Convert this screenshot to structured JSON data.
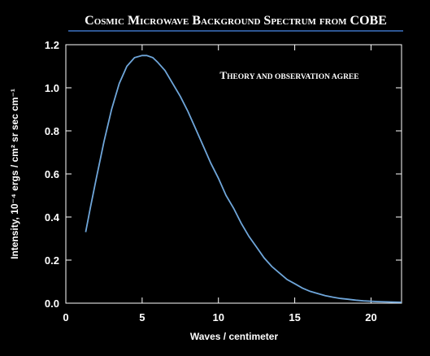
{
  "title": "Cosmic Microwave Background Spectrum from COBE",
  "colors": {
    "background": "#000000",
    "curve": "#6fa6da",
    "title_rule": "#3d73c4",
    "text": "#ffffff",
    "frame": "#ffffff"
  },
  "chart_data": {
    "type": "line",
    "title": "Cosmic Microwave Background Spectrum from COBE",
    "annotation": "Theory and observation agree",
    "xlabel": "Waves / centimeter",
    "ylabel": "Intensity, 10⁻⁴ ergs / cm² sr sec cm⁻¹",
    "xlim": [
      0,
      22
    ],
    "ylim": [
      0,
      1.2
    ],
    "x_ticks": [
      0,
      5,
      10,
      15,
      20
    ],
    "y_ticks": [
      0.0,
      0.2,
      0.4,
      0.6,
      0.8,
      1.0,
      1.2
    ],
    "x_tick_labels": [
      "0",
      "5",
      "10",
      "15",
      "20"
    ],
    "y_tick_labels": [
      "0.0",
      "0.2",
      "0.4",
      "0.6",
      "0.8",
      "1.0",
      "1.2"
    ],
    "grid": false,
    "series": [
      {
        "x": [
          1.3,
          1.6,
          2,
          2.5,
          3,
          3.5,
          4,
          4.5,
          5,
          5.3,
          5.7,
          6,
          6.5,
          7,
          7.5,
          8,
          8.5,
          9,
          9.5,
          10,
          10.5,
          11,
          11.5,
          12,
          12.5,
          13,
          13.5,
          14,
          14.5,
          15,
          15.5,
          16,
          16.5,
          17,
          17.5,
          18,
          18.5,
          19,
          19.5,
          20,
          20.5,
          21,
          21.5,
          22
        ],
        "values": [
          0.33,
          0.44,
          0.58,
          0.75,
          0.9,
          1.02,
          1.1,
          1.14,
          1.15,
          1.15,
          1.14,
          1.12,
          1.08,
          1.02,
          0.96,
          0.89,
          0.81,
          0.73,
          0.65,
          0.58,
          0.5,
          0.44,
          0.37,
          0.31,
          0.26,
          0.21,
          0.17,
          0.14,
          0.11,
          0.09,
          0.07,
          0.055,
          0.045,
          0.035,
          0.028,
          0.022,
          0.018,
          0.014,
          0.011,
          0.009,
          0.007,
          0.006,
          0.005,
          0.004
        ]
      }
    ]
  }
}
